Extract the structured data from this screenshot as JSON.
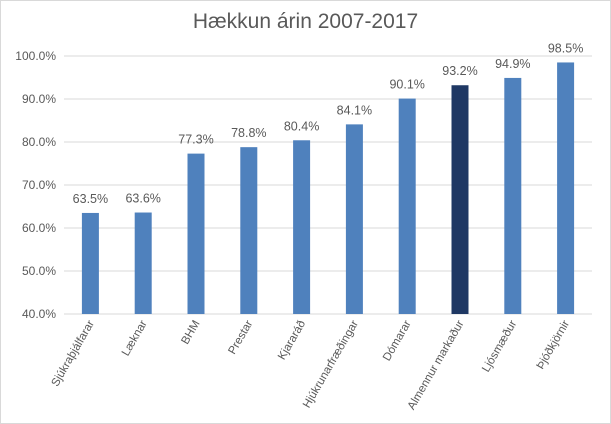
{
  "chart_data": {
    "type": "bar",
    "title": "Hækkun árin 2007-2017",
    "xlabel": "",
    "ylabel": "",
    "categories": [
      "Sjúkraþjálfarar",
      "Læknar",
      "BHM",
      "Prestar",
      "Kjararáð",
      "Hjúkrunarfræðingar",
      "Dómarar",
      "Almennur markaður",
      "Ljósmæður",
      "Þjóðkjörnir"
    ],
    "values": [
      63.5,
      63.6,
      77.3,
      78.8,
      80.4,
      84.1,
      90.1,
      93.2,
      94.9,
      98.5
    ],
    "value_labels": [
      "63.5%",
      "63.6%",
      "77.3%",
      "78.8%",
      "80.4%",
      "84.1%",
      "90.1%",
      "93.2%",
      "94.9%",
      "98.5%"
    ],
    "ylim": [
      40,
      100
    ],
    "yticks": [
      40,
      50,
      60,
      70,
      80,
      90,
      100
    ],
    "ytick_labels": [
      "40.0%",
      "50.0%",
      "60.0%",
      "70.0%",
      "80.0%",
      "90.0%",
      "100.0%"
    ],
    "grid": true,
    "legend": "none",
    "colors": {
      "bar": "#4f81bd",
      "highlight": "#1f3864",
      "highlight_category": "Almennur markaður",
      "grid": "#d9d9d9",
      "text": "#595959"
    }
  }
}
